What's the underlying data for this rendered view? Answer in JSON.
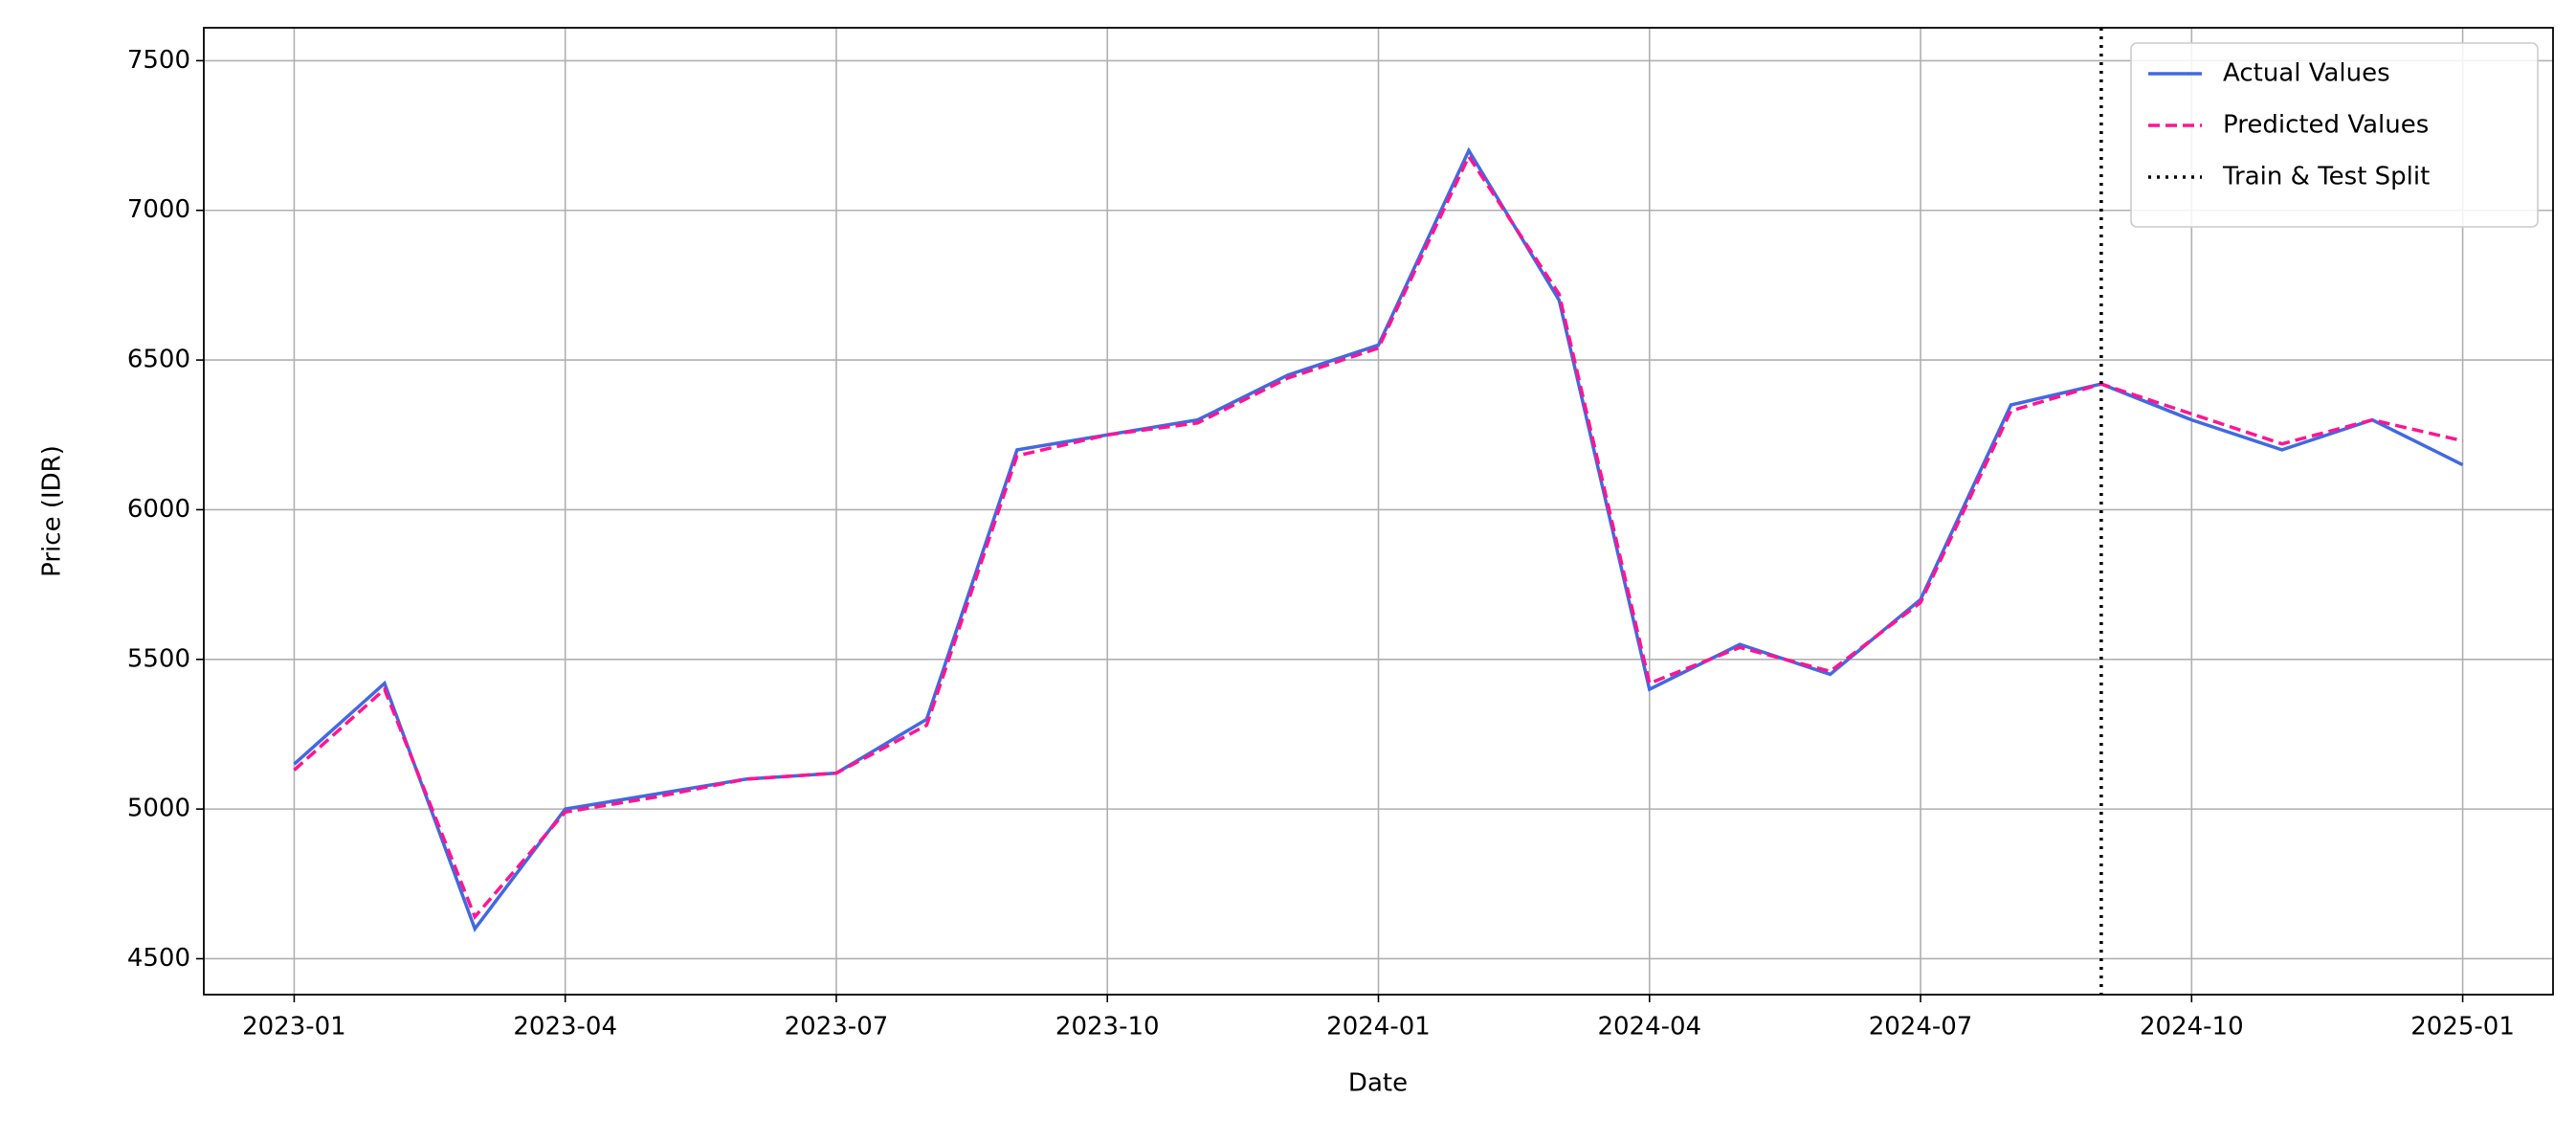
{
  "chart_data": {
    "type": "line",
    "x_label": "Date",
    "y_label": "Price (IDR)",
    "x": [
      "2023-01",
      "2023-02",
      "2023-03",
      "2023-04",
      "2023-05",
      "2023-06",
      "2023-07",
      "2023-08",
      "2023-09",
      "2023-10",
      "2023-11",
      "2023-12",
      "2024-01",
      "2024-02",
      "2024-03",
      "2024-04",
      "2024-05",
      "2024-06",
      "2024-07",
      "2024-08",
      "2024-09",
      "2024-10",
      "2024-11",
      "2024-12",
      "2025-01"
    ],
    "series": [
      {
        "name": "Actual Values",
        "color": "#4169e1",
        "style": "solid",
        "values": [
          5150,
          5420,
          4600,
          5000,
          5050,
          5100,
          5120,
          5300,
          6200,
          6250,
          6300,
          6450,
          6550,
          7200,
          6700,
          5400,
          5550,
          5450,
          5700,
          6350,
          6420,
          6300,
          6200,
          6300,
          6150
        ]
      },
      {
        "name": "Predicted Values",
        "color": "#ff1493",
        "style": "dashed",
        "values": [
          5130,
          5400,
          4640,
          4990,
          5040,
          5100,
          5120,
          5280,
          6180,
          6250,
          6290,
          6440,
          6540,
          7180,
          6720,
          5420,
          5540,
          5460,
          5690,
          6330,
          6420,
          6320,
          6220,
          6300,
          6230
        ]
      }
    ],
    "split": {
      "name": "Train & Test Split",
      "x": "2024-09",
      "color": "#000000"
    },
    "xlim": [
      "2022-12",
      "2025-02"
    ],
    "xticks": [
      "2023-01",
      "2023-04",
      "2023-07",
      "2023-10",
      "2024-01",
      "2024-04",
      "2024-07",
      "2024-10",
      "2025-01"
    ],
    "ylim": [
      4380,
      7610
    ],
    "yticks": [
      4500,
      5000,
      5500,
      6000,
      6500,
      7000,
      7500
    ],
    "grid": true,
    "legend": "upper right"
  }
}
